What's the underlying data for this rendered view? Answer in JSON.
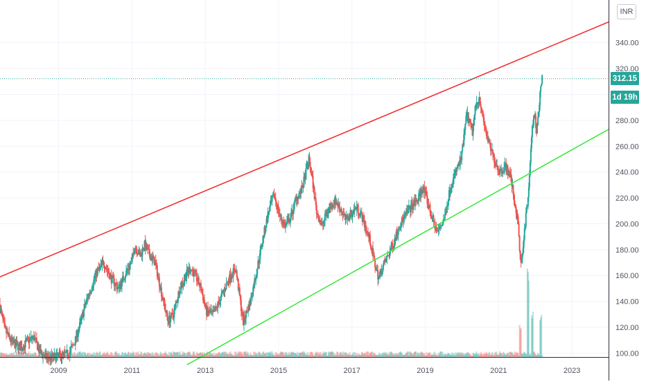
{
  "currency_button": "INR",
  "last_price_tag": "312.15",
  "countdown_tag": "1d 19h",
  "colors": {
    "up": "#26a69a",
    "down": "#ef5350",
    "resistance_line": "#f23030",
    "support_line": "#3ee83e",
    "last_price_line": "#26a69a",
    "grid": "#f0f3fa",
    "axis_text": "#50535e"
  },
  "chart_data": {
    "type": "candlestick",
    "title": "",
    "x_tick_labels": [
      "2009",
      "2011",
      "2013",
      "2015",
      "2017",
      "2019",
      "2021",
      "2023"
    ],
    "y_tick_labels": [
      "100.00",
      "120.00",
      "140.00",
      "160.00",
      "180.00",
      "200.00",
      "220.00",
      "240.00",
      "260.00",
      "280.00",
      "300.00",
      "320.00",
      "340.00"
    ],
    "x_range": [
      2007.4,
      2024.0
    ],
    "y_range": [
      97,
      373
    ],
    "last_price": 312.15,
    "price_path": [
      [
        2007.4,
        138
      ],
      [
        2007.55,
        118
      ],
      [
        2007.75,
        108
      ],
      [
        2008.0,
        104
      ],
      [
        2008.2,
        110
      ],
      [
        2008.35,
        112
      ],
      [
        2008.5,
        101
      ],
      [
        2008.7,
        96
      ],
      [
        2008.9,
        97
      ],
      [
        2009.1,
        98
      ],
      [
        2009.3,
        100
      ],
      [
        2009.45,
        108
      ],
      [
        2009.6,
        122
      ],
      [
        2009.75,
        138
      ],
      [
        2009.9,
        150
      ],
      [
        2010.05,
        162
      ],
      [
        2010.25,
        170
      ],
      [
        2010.45,
        158
      ],
      [
        2010.65,
        150
      ],
      [
        2010.85,
        162
      ],
      [
        2011.0,
        170
      ],
      [
        2011.1,
        183
      ],
      [
        2011.25,
        175
      ],
      [
        2011.35,
        184
      ],
      [
        2011.5,
        176
      ],
      [
        2011.65,
        170
      ],
      [
        2011.8,
        150
      ],
      [
        2012.0,
        125
      ],
      [
        2012.15,
        130
      ],
      [
        2012.3,
        148
      ],
      [
        2012.45,
        158
      ],
      [
        2012.6,
        166
      ],
      [
        2012.75,
        160
      ],
      [
        2012.9,
        150
      ],
      [
        2013.05,
        132
      ],
      [
        2013.25,
        130
      ],
      [
        2013.4,
        140
      ],
      [
        2013.55,
        150
      ],
      [
        2013.7,
        160
      ],
      [
        2013.85,
        165
      ],
      [
        2013.95,
        145
      ],
      [
        2014.05,
        124
      ],
      [
        2014.25,
        140
      ],
      [
        2014.45,
        168
      ],
      [
        2014.6,
        190
      ],
      [
        2014.75,
        210
      ],
      [
        2014.9,
        222
      ],
      [
        2015.05,
        206
      ],
      [
        2015.2,
        198
      ],
      [
        2015.35,
        205
      ],
      [
        2015.5,
        220
      ],
      [
        2015.65,
        226
      ],
      [
        2015.75,
        238
      ],
      [
        2015.85,
        250
      ],
      [
        2015.95,
        232
      ],
      [
        2016.05,
        210
      ],
      [
        2016.2,
        198
      ],
      [
        2016.35,
        210
      ],
      [
        2016.55,
        218
      ],
      [
        2016.7,
        212
      ],
      [
        2016.85,
        203
      ],
      [
        2017.0,
        208
      ],
      [
        2017.15,
        213
      ],
      [
        2017.3,
        205
      ],
      [
        2017.5,
        188
      ],
      [
        2017.65,
        168
      ],
      [
        2017.75,
        158
      ],
      [
        2017.85,
        166
      ],
      [
        2018.0,
        175
      ],
      [
        2018.15,
        185
      ],
      [
        2018.3,
        198
      ],
      [
        2018.45,
        205
      ],
      [
        2018.6,
        212
      ],
      [
        2018.8,
        218
      ],
      [
        2018.95,
        228
      ],
      [
        2019.05,
        220
      ],
      [
        2019.2,
        205
      ],
      [
        2019.35,
        193
      ],
      [
        2019.55,
        205
      ],
      [
        2019.7,
        228
      ],
      [
        2019.85,
        240
      ],
      [
        2020.0,
        250
      ],
      [
        2020.15,
        285
      ],
      [
        2020.3,
        270
      ],
      [
        2020.4,
        292
      ],
      [
        2020.5,
        298
      ],
      [
        2020.6,
        280
      ],
      [
        2020.75,
        262
      ],
      [
        2020.9,
        250
      ],
      [
        2021.05,
        240
      ],
      [
        2021.2,
        245
      ],
      [
        2021.35,
        236
      ],
      [
        2021.45,
        218
      ],
      [
        2021.55,
        200
      ],
      [
        2021.62,
        170
      ],
      [
        2021.7,
        186
      ],
      [
        2021.78,
        210
      ],
      [
        2021.85,
        228
      ],
      [
        2021.92,
        268
      ],
      [
        2022.0,
        286
      ],
      [
        2022.05,
        272
      ],
      [
        2022.12,
        292
      ],
      [
        2022.2,
        312
      ]
    ],
    "volume_baseline": 0.04,
    "volume_spikes": [
      [
        2021.8,
        0.85
      ],
      [
        2021.92,
        0.45
      ],
      [
        2022.15,
        0.42
      ],
      [
        2021.6,
        0.3
      ]
    ],
    "trend_lines": [
      {
        "name": "",
        "role": "resistance",
        "from": [
          2007.4,
          159
        ],
        "to": [
          2024.0,
          356
        ]
      },
      {
        "name": "",
        "role": "support",
        "from": [
          2012.5,
          91
        ],
        "to": [
          2024.0,
          273
        ]
      }
    ],
    "grid": true,
    "last_price_line": true
  }
}
